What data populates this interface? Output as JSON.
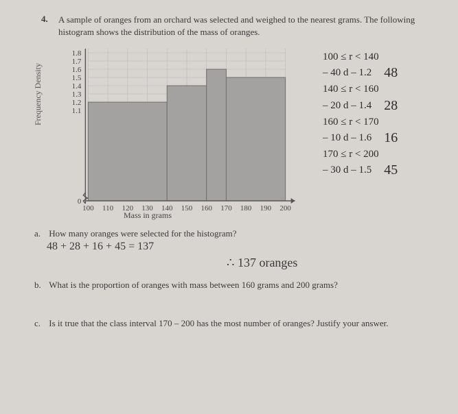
{
  "question_number": "4.",
  "question_text": "A sample of oranges from an orchard was selected and weighed to the nearest grams. The following histogram shows the distribution of the mass of oranges.",
  "chart": {
    "type": "histogram",
    "ylabel": "Frequency Density",
    "xlabel": "Mass in grams",
    "x_ticks": [
      100,
      110,
      120,
      130,
      140,
      150,
      160,
      170,
      180,
      190,
      200
    ],
    "y_ticks": [
      1.1,
      1.2,
      1.3,
      1.4,
      1.5,
      1.6,
      1.7,
      1.8
    ],
    "xlim": [
      95,
      205
    ],
    "ylim": [
      0,
      1.85
    ],
    "grid_color": "#bfbfbf",
    "axis_color": "#555555",
    "bar_color": "#a3a2a0",
    "bars": [
      {
        "x0": 100,
        "x1": 140,
        "h": 1.2
      },
      {
        "x0": 140,
        "x1": 160,
        "h": 1.4
      },
      {
        "x0": 160,
        "x1": 170,
        "h": 1.6
      },
      {
        "x0": 170,
        "x1": 200,
        "h": 1.5
      }
    ]
  },
  "handnotes": {
    "lines": [
      "100 ≤ r < 140",
      "– 40   d – 1.2",
      "140 ≤ r < 160",
      "– 20   d – 1.4",
      "160 ≤ r < 170",
      "– 10   d – 1.6",
      "170 ≤ r < 200",
      "– 30   d – 1.5"
    ],
    "freqs": [
      "48",
      "28",
      "16",
      "45"
    ]
  },
  "parts": {
    "a": {
      "label": "a.",
      "text": "How many oranges were selected for the histogram?",
      "hand_work": "48 + 28 + 16 + 45  = 137",
      "hand_answer": "∴  137 oranges"
    },
    "b": {
      "label": "b.",
      "text": "What is the proportion of oranges with mass between 160 grams and 200 grams?"
    },
    "c": {
      "label": "c.",
      "text": "Is it true that the class interval 170 – 200 has the most number of oranges? Justify your answer."
    }
  }
}
